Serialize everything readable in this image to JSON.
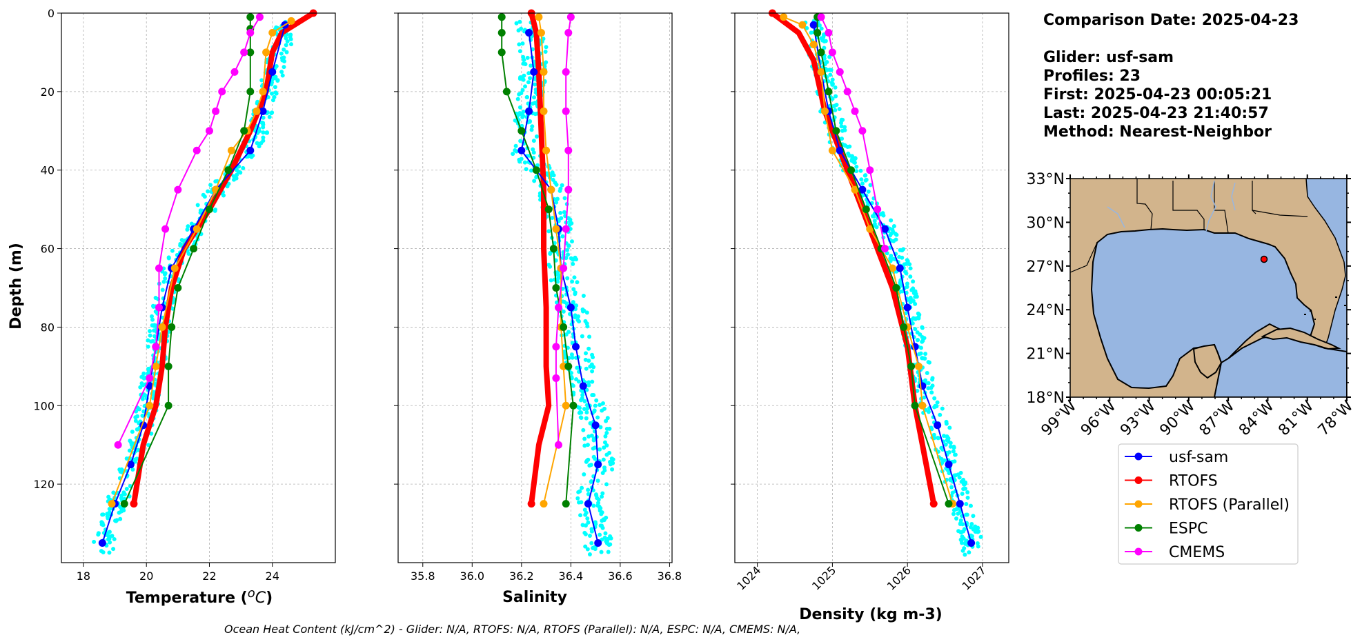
{
  "info": {
    "lines": [
      "Comparison Date: 2025-04-23",
      "",
      "Glider: usf-sam",
      "Profiles: 23",
      "First: 2025-04-23 00:05:21",
      "Last: 2025-04-23 21:40:57",
      "Method: Nearest-Neighbor"
    ]
  },
  "footer": "Ocean Heat Content (kJ/cm^2) - Glider: N/A,  RTOFS: N/A,  RTOFS (Parallel): N/A,  ESPC: N/A,  CMEMS: N/A,",
  "legend": [
    {
      "label": "usf-sam",
      "color": "#0000ff"
    },
    {
      "label": "RTOFS",
      "color": "#ff0000"
    },
    {
      "label": "RTOFS (Parallel)",
      "color": "#ffa500"
    },
    {
      "label": "ESPC",
      "color": "#008000"
    },
    {
      "label": "CMEMS",
      "color": "#ff00ff"
    }
  ],
  "map": {
    "lat_ticks": [
      "33°N",
      "30°N",
      "27°N",
      "24°N",
      "21°N",
      "18°N"
    ],
    "lon_ticks": [
      "99°W",
      "96°W",
      "93°W",
      "90°W",
      "87°W",
      "84°W",
      "81°W",
      "78°W"
    ],
    "extent": {
      "lon": [
        -99,
        -78
      ],
      "lat": [
        18,
        33
      ]
    },
    "glider_position": {
      "lon": -84.6,
      "lat": 27.8
    },
    "land_color": "#d2b48c",
    "ocean_color": "#97b6e1"
  },
  "chart_data": [
    {
      "type": "line",
      "xlabel": "Temperature (°C)",
      "ylabel": "Depth (m)",
      "xlim": [
        17.3,
        26.0
      ],
      "ylim": [
        140,
        0
      ],
      "xticks": [
        "18",
        "20",
        "22",
        "24"
      ],
      "yticks": [
        "0",
        "20",
        "40",
        "60",
        "80",
        "100",
        "120"
      ],
      "grid": true,
      "series": [
        {
          "name": "usf-sam",
          "color": "#0000ff",
          "points": [
            [
              24.4,
              3
            ],
            [
              24.0,
              15
            ],
            [
              23.7,
              25
            ],
            [
              23.3,
              35
            ],
            [
              22.2,
              45
            ],
            [
              21.5,
              55
            ],
            [
              20.8,
              65
            ],
            [
              20.5,
              75
            ],
            [
              20.3,
              85
            ],
            [
              20.1,
              95
            ],
            [
              19.9,
              105
            ],
            [
              19.5,
              115
            ],
            [
              19.0,
              125
            ],
            [
              18.6,
              135
            ]
          ]
        },
        {
          "name": "RTOFS",
          "color": "#ff0000",
          "thick": true,
          "points": [
            [
              25.3,
              0
            ],
            [
              24.3,
              5
            ],
            [
              24.0,
              10
            ],
            [
              23.8,
              20
            ],
            [
              23.3,
              30
            ],
            [
              22.7,
              40
            ],
            [
              22.0,
              50
            ],
            [
              21.2,
              60
            ],
            [
              20.8,
              70
            ],
            [
              20.6,
              80
            ],
            [
              20.5,
              90
            ],
            [
              20.3,
              100
            ],
            [
              19.9,
              110
            ],
            [
              19.6,
              125
            ]
          ]
        },
        {
          "name": "RTOFS (Parallel)",
          "color": "#ffa500",
          "points": [
            [
              24.6,
              2
            ],
            [
              24.0,
              5
            ],
            [
              23.8,
              10
            ],
            [
              23.7,
              20
            ],
            [
              23.5,
              25
            ],
            [
              23.2,
              30
            ],
            [
              22.7,
              35
            ],
            [
              22.2,
              45
            ],
            [
              21.6,
              55
            ],
            [
              20.9,
              65
            ],
            [
              20.5,
              80
            ],
            [
              20.3,
              90
            ],
            [
              20.1,
              100
            ],
            [
              18.9,
              125
            ]
          ]
        },
        {
          "name": "ESPC",
          "color": "#008000",
          "points": [
            [
              23.3,
              1
            ],
            [
              23.3,
              4
            ],
            [
              23.3,
              10
            ],
            [
              23.3,
              20
            ],
            [
              23.1,
              30
            ],
            [
              22.6,
              40
            ],
            [
              22.0,
              50
            ],
            [
              21.5,
              60
            ],
            [
              21.0,
              70
            ],
            [
              20.8,
              80
            ],
            [
              20.7,
              90
            ],
            [
              20.7,
              100
            ],
            [
              19.3,
              125
            ]
          ]
        },
        {
          "name": "CMEMS",
          "color": "#ff00ff",
          "points": [
            [
              23.6,
              1
            ],
            [
              23.3,
              5
            ],
            [
              23.1,
              10
            ],
            [
              22.8,
              15
            ],
            [
              22.4,
              20
            ],
            [
              22.2,
              25
            ],
            [
              22.0,
              30
            ],
            [
              21.6,
              35
            ],
            [
              21.0,
              45
            ],
            [
              20.6,
              55
            ],
            [
              20.4,
              65
            ],
            [
              20.4,
              75
            ],
            [
              20.3,
              85
            ],
            [
              20.1,
              93
            ],
            [
              19.1,
              110
            ]
          ]
        }
      ]
    },
    {
      "type": "line",
      "xlabel": "Salinity",
      "ylabel": "",
      "xlim": [
        35.7,
        36.81
      ],
      "ylim": [
        140,
        0
      ],
      "xticks": [
        "35.8",
        "36.0",
        "36.2",
        "36.4",
        "36.6",
        "36.8"
      ],
      "yticks": [],
      "grid": true,
      "series": [
        {
          "name": "usf-sam",
          "color": "#0000ff",
          "points": [
            [
              36.23,
              5
            ],
            [
              36.25,
              15
            ],
            [
              36.23,
              25
            ],
            [
              36.2,
              35
            ],
            [
              36.32,
              45
            ],
            [
              36.35,
              55
            ],
            [
              36.36,
              65
            ],
            [
              36.4,
              75
            ],
            [
              36.42,
              85
            ],
            [
              36.45,
              95
            ],
            [
              36.5,
              105
            ],
            [
              36.51,
              115
            ],
            [
              36.47,
              125
            ],
            [
              36.51,
              135
            ]
          ]
        },
        {
          "name": "RTOFS",
          "color": "#ff0000",
          "thick": true,
          "points": [
            [
              36.24,
              0
            ],
            [
              36.26,
              5
            ],
            [
              36.27,
              15
            ],
            [
              36.28,
              30
            ],
            [
              36.29,
              45
            ],
            [
              36.29,
              60
            ],
            [
              36.3,
              75
            ],
            [
              36.3,
              90
            ],
            [
              36.31,
              100
            ],
            [
              36.27,
              110
            ],
            [
              36.24,
              125
            ]
          ]
        },
        {
          "name": "RTOFS (Parallel)",
          "color": "#ffa500",
          "points": [
            [
              36.27,
              1
            ],
            [
              36.28,
              5
            ],
            [
              36.29,
              15
            ],
            [
              36.29,
              25
            ],
            [
              36.3,
              35
            ],
            [
              36.32,
              45
            ],
            [
              36.34,
              55
            ],
            [
              36.36,
              65
            ],
            [
              36.36,
              80
            ],
            [
              36.37,
              90
            ],
            [
              36.38,
              100
            ],
            [
              36.29,
              125
            ]
          ]
        },
        {
          "name": "ESPC",
          "color": "#008000",
          "points": [
            [
              36.12,
              1
            ],
            [
              36.12,
              5
            ],
            [
              36.12,
              10
            ],
            [
              36.14,
              20
            ],
            [
              36.2,
              30
            ],
            [
              36.26,
              40
            ],
            [
              36.31,
              50
            ],
            [
              36.33,
              60
            ],
            [
              36.34,
              70
            ],
            [
              36.37,
              80
            ],
            [
              36.39,
              90
            ],
            [
              36.41,
              100
            ],
            [
              36.38,
              125
            ]
          ]
        },
        {
          "name": "CMEMS",
          "color": "#ff00ff",
          "points": [
            [
              36.4,
              1
            ],
            [
              36.39,
              5
            ],
            [
              36.38,
              15
            ],
            [
              36.38,
              25
            ],
            [
              36.39,
              35
            ],
            [
              36.39,
              45
            ],
            [
              36.38,
              55
            ],
            [
              36.37,
              65
            ],
            [
              36.35,
              75
            ],
            [
              36.34,
              85
            ],
            [
              36.34,
              93
            ],
            [
              36.35,
              110
            ]
          ]
        }
      ]
    },
    {
      "type": "line",
      "xlabel": "Density (kg m-3)",
      "ylabel": "",
      "xlim": [
        1023.7,
        1027.35
      ],
      "ylim": [
        140,
        0
      ],
      "xticks": [
        "1024",
        "1025",
        "1026",
        "1027"
      ],
      "yticks": [],
      "grid": true,
      "series": [
        {
          "name": "usf-sam",
          "color": "#0000ff",
          "points": [
            [
              1024.75,
              3
            ],
            [
              1024.85,
              15
            ],
            [
              1024.95,
              25
            ],
            [
              1025.1,
              35
            ],
            [
              1025.4,
              45
            ],
            [
              1025.7,
              55
            ],
            [
              1025.9,
              65
            ],
            [
              1026.0,
              75
            ],
            [
              1026.1,
              85
            ],
            [
              1026.2,
              95
            ],
            [
              1026.4,
              105
            ],
            [
              1026.55,
              115
            ],
            [
              1026.7,
              125
            ],
            [
              1026.85,
              135
            ]
          ]
        },
        {
          "name": "RTOFS",
          "color": "#ff0000",
          "thick": true,
          "points": [
            [
              1024.2,
              0
            ],
            [
              1024.55,
              5
            ],
            [
              1024.75,
              12
            ],
            [
              1024.9,
              25
            ],
            [
              1025.2,
              40
            ],
            [
              1025.5,
              55
            ],
            [
              1025.8,
              70
            ],
            [
              1026.0,
              85
            ],
            [
              1026.1,
              100
            ],
            [
              1026.25,
              115
            ],
            [
              1026.35,
              125
            ]
          ]
        },
        {
          "name": "RTOFS (Parallel)",
          "color": "#ffa500",
          "points": [
            [
              1024.35,
              1
            ],
            [
              1024.6,
              3
            ],
            [
              1024.75,
              8
            ],
            [
              1024.85,
              15
            ],
            [
              1024.9,
              25
            ],
            [
              1025.0,
              35
            ],
            [
              1025.3,
              45
            ],
            [
              1025.5,
              55
            ],
            [
              1025.8,
              65
            ],
            [
              1026.0,
              80
            ],
            [
              1026.15,
              90
            ],
            [
              1026.2,
              100
            ],
            [
              1026.6,
              125
            ]
          ]
        },
        {
          "name": "ESPC",
          "color": "#008000",
          "points": [
            [
              1024.8,
              1
            ],
            [
              1024.8,
              5
            ],
            [
              1024.85,
              10
            ],
            [
              1024.95,
              20
            ],
            [
              1025.05,
              30
            ],
            [
              1025.25,
              40
            ],
            [
              1025.45,
              50
            ],
            [
              1025.65,
              60
            ],
            [
              1025.85,
              70
            ],
            [
              1025.95,
              80
            ],
            [
              1026.05,
              90
            ],
            [
              1026.1,
              100
            ],
            [
              1026.55,
              125
            ]
          ]
        },
        {
          "name": "CMEMS",
          "color": "#ff00ff",
          "points": [
            [
              1024.85,
              1
            ],
            [
              1024.95,
              5
            ],
            [
              1025.0,
              10
            ],
            [
              1025.1,
              15
            ],
            [
              1025.2,
              20
            ],
            [
              1025.3,
              25
            ],
            [
              1025.4,
              30
            ],
            [
              1025.5,
              40
            ],
            [
              1025.6,
              50
            ],
            [
              1025.7,
              60
            ]
          ]
        }
      ]
    }
  ]
}
